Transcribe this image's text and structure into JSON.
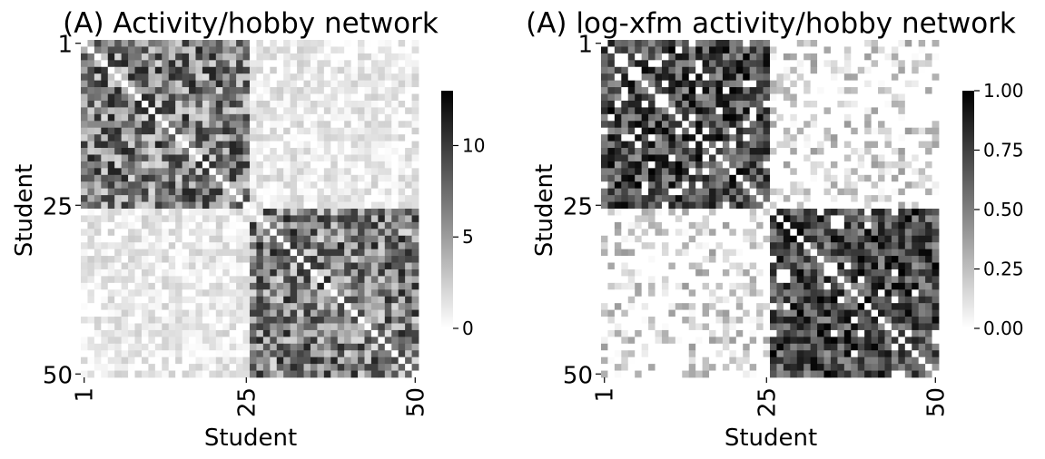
{
  "chart_data": [
    {
      "type": "heatmap",
      "title": "(A) Activity/hobby network",
      "xlabel": "Student",
      "ylabel": "Student",
      "n": 50,
      "blocks": [
        1,
        25,
        50
      ],
      "x_ticks": [
        "1",
        "25",
        "50"
      ],
      "y_ticks": [
        "1",
        "25",
        "50"
      ],
      "colorbar": {
        "min": 0,
        "max": 13,
        "ticks": [
          "0",
          "5",
          "10"
        ],
        "tick_values": [
          0,
          5,
          10
        ]
      },
      "colormap": [
        "#ffffff",
        "#000000"
      ],
      "block_means": {
        "within": 6.5,
        "between": 1.0
      },
      "seed": 17
    },
    {
      "type": "heatmap",
      "title": "(A) log-xfm activity/hobby network",
      "xlabel": "Student",
      "ylabel": "Student",
      "n": 50,
      "blocks": [
        1,
        25,
        50
      ],
      "x_ticks": [
        "1",
        "25",
        "50"
      ],
      "y_ticks": [
        "1",
        "25",
        "50"
      ],
      "colorbar": {
        "min": 0,
        "max": 1,
        "ticks": [
          "0.00",
          "0.25",
          "0.50",
          "0.75",
          "1.00"
        ],
        "tick_values": [
          0,
          0.25,
          0.5,
          0.75,
          1
        ]
      },
      "colormap": [
        "#ffffff",
        "#000000"
      ],
      "block_means": {
        "within": 0.7,
        "between": 0.15
      },
      "seed": 17
    }
  ]
}
